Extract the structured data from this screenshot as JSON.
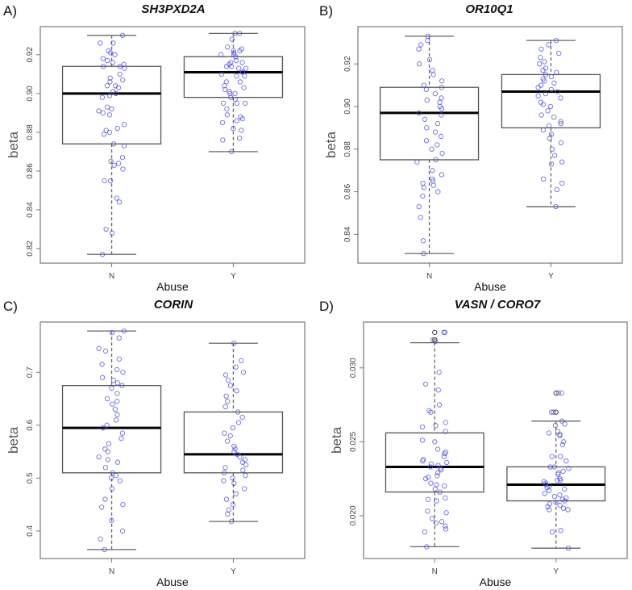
{
  "chart_data": [
    {
      "type": "box",
      "panel": "A)",
      "title": "SH3PXD2A",
      "xlabel": "Abuse",
      "ylabel": "beta",
      "categories": [
        "N",
        "Y"
      ],
      "ylim": [
        0.8125,
        0.9345
      ],
      "yticks": [
        0.82,
        0.84,
        0.86,
        0.88,
        0.9,
        0.92
      ],
      "ytick_labels": [
        "0.82",
        "0.84",
        "0.86",
        "0.88",
        "0.90",
        "0.92"
      ],
      "boxes": [
        {
          "min": 0.817,
          "q1": 0.874,
          "median": 0.9,
          "q3": 0.914,
          "max": 0.93,
          "points": [
            0.93,
            0.926,
            0.926,
            0.922,
            0.921,
            0.92,
            0.918,
            0.917,
            0.916,
            0.915,
            0.914,
            0.914,
            0.913,
            0.91,
            0.908,
            0.907,
            0.906,
            0.904,
            0.904,
            0.903,
            0.901,
            0.9,
            0.899,
            0.898,
            0.893,
            0.892,
            0.891,
            0.89,
            0.889,
            0.884,
            0.882,
            0.881,
            0.88,
            0.879,
            0.874,
            0.873,
            0.867,
            0.865,
            0.864,
            0.863,
            0.861,
            0.855,
            0.855,
            0.846,
            0.844,
            0.83,
            0.828,
            0.817
          ]
        },
        {
          "min": 0.87,
          "q1": 0.898,
          "median": 0.911,
          "q3": 0.919,
          "max": 0.931,
          "points": [
            0.931,
            0.931,
            0.928,
            0.924,
            0.923,
            0.922,
            0.922,
            0.921,
            0.92,
            0.92,
            0.919,
            0.917,
            0.916,
            0.916,
            0.915,
            0.914,
            0.914,
            0.913,
            0.913,
            0.911,
            0.911,
            0.91,
            0.909,
            0.909,
            0.906,
            0.906,
            0.904,
            0.903,
            0.902,
            0.901,
            0.9,
            0.9,
            0.898,
            0.897,
            0.895,
            0.895,
            0.895,
            0.892,
            0.889,
            0.888,
            0.887,
            0.886,
            0.885,
            0.882,
            0.881,
            0.877,
            0.876,
            0.87
          ]
        }
      ]
    },
    {
      "type": "box",
      "panel": "B)",
      "title": "OR10Q1",
      "xlabel": "Abuse",
      "ylabel": "beta",
      "categories": [
        "N",
        "Y"
      ],
      "ylim": [
        0.8265,
        0.9375
      ],
      "yticks": [
        0.84,
        0.86,
        0.88,
        0.9,
        0.92
      ],
      "ytick_labels": [
        "0.84",
        "0.86",
        "0.88",
        "0.90",
        "0.92"
      ],
      "boxes": [
        {
          "min": 0.831,
          "q1": 0.875,
          "median": 0.897,
          "q3": 0.909,
          "max": 0.933,
          "points": [
            0.933,
            0.931,
            0.929,
            0.927,
            0.922,
            0.92,
            0.917,
            0.915,
            0.912,
            0.91,
            0.909,
            0.908,
            0.906,
            0.904,
            0.903,
            0.902,
            0.9,
            0.899,
            0.897,
            0.896,
            0.894,
            0.892,
            0.89,
            0.888,
            0.886,
            0.884,
            0.882,
            0.88,
            0.878,
            0.875,
            0.874,
            0.87,
            0.868,
            0.866,
            0.865,
            0.864,
            0.863,
            0.862,
            0.86,
            0.858,
            0.853,
            0.848,
            0.837,
            0.831
          ]
        },
        {
          "min": 0.853,
          "q1": 0.89,
          "median": 0.907,
          "q3": 0.915,
          "max": 0.931,
          "points": [
            0.931,
            0.929,
            0.927,
            0.925,
            0.923,
            0.921,
            0.92,
            0.918,
            0.917,
            0.916,
            0.915,
            0.914,
            0.913,
            0.912,
            0.911,
            0.91,
            0.909,
            0.908,
            0.907,
            0.906,
            0.905,
            0.904,
            0.902,
            0.901,
            0.9,
            0.898,
            0.896,
            0.895,
            0.893,
            0.892,
            0.891,
            0.889,
            0.887,
            0.885,
            0.883,
            0.88,
            0.877,
            0.874,
            0.873,
            0.866,
            0.864,
            0.861,
            0.853
          ]
        }
      ]
    },
    {
      "type": "box",
      "panel": "C)",
      "title": "CORIN",
      "xlabel": "Abuse",
      "ylabel": "beta",
      "categories": [
        "N",
        "Y"
      ],
      "ylim": [
        0.348,
        0.795
      ],
      "yticks": [
        0.4,
        0.5,
        0.6,
        0.7
      ],
      "ytick_labels": [
        "0.4",
        "0.5",
        "0.6",
        "0.7"
      ],
      "boxes": [
        {
          "min": 0.365,
          "q1": 0.51,
          "median": 0.595,
          "q3": 0.675,
          "max": 0.778,
          "points": [
            0.778,
            0.775,
            0.765,
            0.745,
            0.74,
            0.725,
            0.715,
            0.705,
            0.7,
            0.69,
            0.685,
            0.68,
            0.675,
            0.67,
            0.66,
            0.65,
            0.645,
            0.64,
            0.63,
            0.62,
            0.61,
            0.6,
            0.595,
            0.585,
            0.575,
            0.565,
            0.555,
            0.55,
            0.54,
            0.535,
            0.53,
            0.52,
            0.51,
            0.505,
            0.5,
            0.495,
            0.48,
            0.46,
            0.45,
            0.445,
            0.42,
            0.4,
            0.385,
            0.365
          ]
        },
        {
          "min": 0.418,
          "q1": 0.51,
          "median": 0.545,
          "q3": 0.625,
          "max": 0.755,
          "points": [
            0.755,
            0.722,
            0.71,
            0.7,
            0.695,
            0.685,
            0.675,
            0.665,
            0.655,
            0.645,
            0.635,
            0.625,
            0.615,
            0.605,
            0.595,
            0.585,
            0.58,
            0.57,
            0.56,
            0.555,
            0.55,
            0.545,
            0.54,
            0.535,
            0.53,
            0.525,
            0.52,
            0.515,
            0.51,
            0.505,
            0.5,
            0.495,
            0.49,
            0.48,
            0.47,
            0.46,
            0.45,
            0.44,
            0.432,
            0.418
          ]
        }
      ]
    },
    {
      "type": "box",
      "panel": "D)",
      "title": "VASN / CORO7",
      "xlabel": "Abuse",
      "ylabel": "beta",
      "categories": [
        "N",
        "Y"
      ],
      "ylim": [
        0.0171,
        0.0331
      ],
      "yticks": [
        0.02,
        0.025,
        0.03
      ],
      "ytick_labels": [
        "0.020",
        "0.025",
        "0.030"
      ],
      "boxes": [
        {
          "min": 0.0179,
          "q1": 0.0216,
          "median": 0.0233,
          "q3": 0.0256,
          "max": 0.0317,
          "outliers": [
            0.0324,
            0.0319
          ],
          "points": [
            0.0324,
            0.0324,
            0.0319,
            0.0318,
            0.0297,
            0.0289,
            0.0285,
            0.0275,
            0.0271,
            0.027,
            0.0263,
            0.0261,
            0.026,
            0.0257,
            0.0251,
            0.025,
            0.0245,
            0.0243,
            0.0242,
            0.024,
            0.0238,
            0.0237,
            0.0236,
            0.0235,
            0.0234,
            0.0233,
            0.0232,
            0.0231,
            0.0229,
            0.0227,
            0.0226,
            0.0225,
            0.0222,
            0.0221,
            0.022,
            0.0218,
            0.0216,
            0.0212,
            0.0211,
            0.021,
            0.0203,
            0.0202,
            0.0198,
            0.0196,
            0.0195,
            0.0193,
            0.0191,
            0.0189,
            0.0179
          ]
        },
        {
          "min": 0.0178,
          "q1": 0.021,
          "median": 0.0221,
          "q3": 0.0233,
          "max": 0.0264,
          "outliers": [
            0.0283,
            0.027
          ],
          "points": [
            0.0283,
            0.0283,
            0.027,
            0.027,
            0.0264,
            0.0262,
            0.0261,
            0.0257,
            0.0256,
            0.0255,
            0.0254,
            0.025,
            0.0248,
            0.024,
            0.024,
            0.0237,
            0.0233,
            0.0233,
            0.0232,
            0.023,
            0.0229,
            0.0228,
            0.0225,
            0.0224,
            0.0224,
            0.0223,
            0.0222,
            0.0221,
            0.022,
            0.0219,
            0.0218,
            0.0217,
            0.0215,
            0.0214,
            0.0213,
            0.0212,
            0.0211,
            0.021,
            0.0209,
            0.0208,
            0.0207,
            0.0206,
            0.0205,
            0.0204,
            0.0204,
            0.019,
            0.0189,
            0.0178
          ]
        }
      ]
    }
  ],
  "colors": {
    "point": "#4a4ae8",
    "outlier": "#333333",
    "box": "#555555",
    "median": "#000000"
  }
}
